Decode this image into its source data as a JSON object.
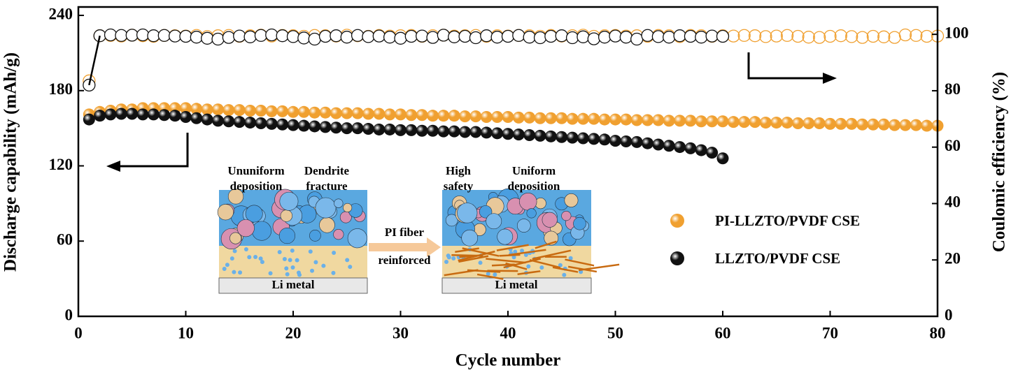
{
  "chart_data": {
    "type": "scatter",
    "x_label": "Cycle number",
    "y_label": "Discharge capability (mAh/g)",
    "y2_label": "Coulomic efficiency (%)",
    "xlim": [
      0,
      80
    ],
    "xticks": [
      0,
      10,
      20,
      30,
      40,
      50,
      60,
      70,
      80
    ],
    "ylim": [
      0,
      246.7
    ],
    "yticks": [
      0,
      60,
      120,
      180,
      240
    ],
    "y2lim": [
      0,
      109.7
    ],
    "y2ticks": [
      0,
      20,
      40,
      60,
      80,
      100
    ],
    "x": [
      1,
      2,
      3,
      4,
      5,
      6,
      7,
      8,
      9,
      10,
      11,
      12,
      13,
      14,
      15,
      16,
      17,
      18,
      19,
      20,
      21,
      22,
      23,
      24,
      25,
      26,
      27,
      28,
      29,
      30,
      31,
      32,
      33,
      34,
      35,
      36,
      37,
      38,
      39,
      40,
      41,
      42,
      43,
      44,
      45,
      46,
      47,
      48,
      49,
      50,
      51,
      52,
      53,
      54,
      55,
      56,
      57,
      58,
      59,
      60,
      61,
      62,
      63,
      64,
      65,
      66,
      67,
      68,
      69,
      70,
      71,
      72,
      73,
      74,
      75,
      76,
      77,
      78,
      79,
      80
    ],
    "series": [
      {
        "name": "PI-LLZTO/PVDF CSE",
        "color": "#f0a030",
        "values": [
          161,
          163,
          164,
          165,
          165,
          166,
          166,
          166,
          166,
          166,
          165.5,
          165,
          165,
          164.5,
          164.5,
          164,
          164,
          163.5,
          163.5,
          163,
          163,
          162.5,
          162.5,
          162,
          162,
          162,
          161.5,
          161.5,
          161,
          161,
          160.5,
          160.5,
          160,
          160,
          160,
          159.5,
          159.5,
          159,
          159,
          159,
          158.5,
          158.5,
          158,
          158,
          158,
          157.5,
          157.5,
          157.5,
          157,
          157,
          157,
          156.5,
          156.5,
          156.5,
          156,
          156,
          156,
          155.5,
          155.5,
          155.5,
          155,
          155,
          155,
          154.5,
          154.5,
          154.5,
          154,
          154,
          154,
          153.5,
          153.5,
          153.5,
          153,
          153,
          153,
          152.5,
          152.5,
          152.5,
          152,
          152
        ]
      },
      {
        "name": "LLZTO/PVDF CSE",
        "color": "#111111",
        "values": [
          157,
          160,
          161,
          161.5,
          161.5,
          161,
          161,
          160.5,
          160,
          159,
          158,
          157,
          156,
          155.5,
          155,
          154.5,
          154,
          153.5,
          153,
          152.5,
          152,
          151.5,
          151,
          150.5,
          150,
          150,
          149.5,
          149,
          149,
          148.5,
          148.5,
          148,
          148,
          147.5,
          147.5,
          147,
          147,
          146.5,
          146,
          145.5,
          145,
          144.5,
          144,
          143.5,
          143,
          142.5,
          142,
          141.5,
          141,
          140,
          139.5,
          139,
          138,
          137,
          136,
          135,
          134,
          132.5,
          130.5,
          126,
          null,
          null,
          null,
          null,
          null,
          null,
          null,
          null,
          null,
          null,
          null,
          null,
          null,
          null,
          null,
          null,
          null,
          null,
          null,
          null
        ]
      }
    ],
    "y2_series": [
      {
        "color": "#f0a030",
        "axis": "y2",
        "values": [
          83.5,
          99.5,
          99.6,
          99.4,
          99.7,
          99.5,
          99.3,
          99.6,
          99.5,
          99.4,
          99.6,
          99.2,
          99.5,
          99.6,
          99.3,
          99.5,
          99.7,
          99.4,
          99.6,
          99.5,
          99.3,
          99.6,
          99.5,
          99.4,
          99.7,
          99.5,
          99.3,
          99.6,
          99.4,
          99.5,
          99.6,
          99.3,
          99.5,
          99.7,
          99.4,
          99.5,
          99.6,
          99.3,
          99.5,
          99.4,
          99.6,
          99.5,
          99.3,
          99.6,
          99.4,
          99.5,
          99.7,
          99.3,
          99.5,
          99.6,
          99.4,
          99.5,
          99.3,
          99.6,
          99.5,
          99.2,
          99.6,
          99.5,
          99.3,
          99.5,
          99.4,
          99.6,
          99.5,
          99.2,
          99.4,
          99.6,
          99.3,
          99.0,
          98.9,
          99.3,
          99.5,
          99.2,
          98.9,
          99.3,
          99.1,
          98.9,
          99.8,
          99.6,
          99.3,
          99.4
        ]
      },
      {
        "color": "#111111",
        "axis": "y2",
        "values": [
          82,
          99.5,
          99.8,
          99.6,
          99.7,
          99.8,
          99.5,
          99.6,
          99.4,
          99.3,
          99.0,
          98.6,
          98.3,
          98.9,
          99.4,
          99.1,
          99.6,
          99.8,
          99.5,
          99.2,
          98.7,
          98.3,
          99.3,
          99.5,
          99.0,
          99.6,
          99.2,
          99.4,
          99.0,
          98.6,
          99.3,
          99.4,
          98.9,
          99.7,
          99.1,
          99.3,
          98.8,
          99.5,
          99.0,
          99.3,
          99.6,
          99.0,
          98.8,
          99.3,
          99.5,
          98.8,
          99.1,
          98.4,
          99.0,
          99.4,
          99.0,
          98.3,
          99.6,
          99.2,
          99.0,
          99.5,
          99.3,
          99.0,
          99.4,
          99.3,
          null,
          null,
          null,
          null,
          null,
          null,
          null,
          null,
          null,
          null,
          null,
          null,
          null,
          null,
          null,
          null,
          null,
          null,
          null,
          null
        ]
      }
    ],
    "annotations": [
      "Ununiform",
      "deposition",
      "Dendrite",
      "fracture",
      "High",
      "safety",
      "Uniform",
      "deposition",
      "PI fiber",
      "reinforced",
      "Li metal",
      "Li metal"
    ]
  }
}
